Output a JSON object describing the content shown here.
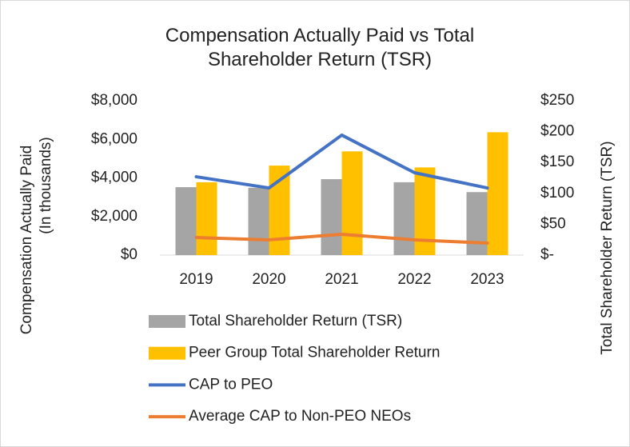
{
  "chart_data": {
    "type": "combo",
    "title": "Compensation Actually Paid vs Total Shareholder Return (TSR)",
    "ylabel": [
      "Compensation Actually Paid",
      "(In thousands)"
    ],
    "y2label": "Total Shareholder Return (TSR)",
    "categories": [
      "2019",
      "2020",
      "2021",
      "2022",
      "2023"
    ],
    "ylim": [
      0,
      8000
    ],
    "yticks": [
      {
        "value": 0,
        "label": "$0"
      },
      {
        "value": 2000,
        "label": "$2,000"
      },
      {
        "value": 4000,
        "label": "$4,000"
      },
      {
        "value": 6000,
        "label": "$6,000"
      },
      {
        "value": 8000,
        "label": "$8,000"
      }
    ],
    "y2lim": [
      0,
      250
    ],
    "y2ticks": [
      {
        "value": 0,
        "label": "$-"
      },
      {
        "value": 50,
        "label": "$50"
      },
      {
        "value": 100,
        "label": "$100"
      },
      {
        "value": 150,
        "label": "$150"
      },
      {
        "value": 200,
        "label": "$200"
      },
      {
        "value": 250,
        "label": "$250"
      }
    ],
    "legend": "bottom",
    "series": [
      {
        "name": "Total Shareholder Return (TSR)",
        "type": "bar",
        "axis": "y2",
        "color": "#a5a5a5",
        "values": [
          110,
          109,
          123,
          118,
          102
        ]
      },
      {
        "name": "Peer Group Total Shareholder Return",
        "type": "bar",
        "axis": "y2",
        "color": "#ffc000",
        "values": [
          118,
          145,
          168,
          142,
          199
        ]
      },
      {
        "name": "CAP to PEO",
        "type": "line",
        "color": "#4472c4",
        "values": [
          4060,
          3480,
          6220,
          4270,
          3480
        ]
      },
      {
        "name": "Average CAP to Non-PEO NEOs",
        "type": "line",
        "color": "#ed7d31",
        "values": [
          910,
          790,
          1080,
          790,
          620
        ]
      }
    ]
  }
}
